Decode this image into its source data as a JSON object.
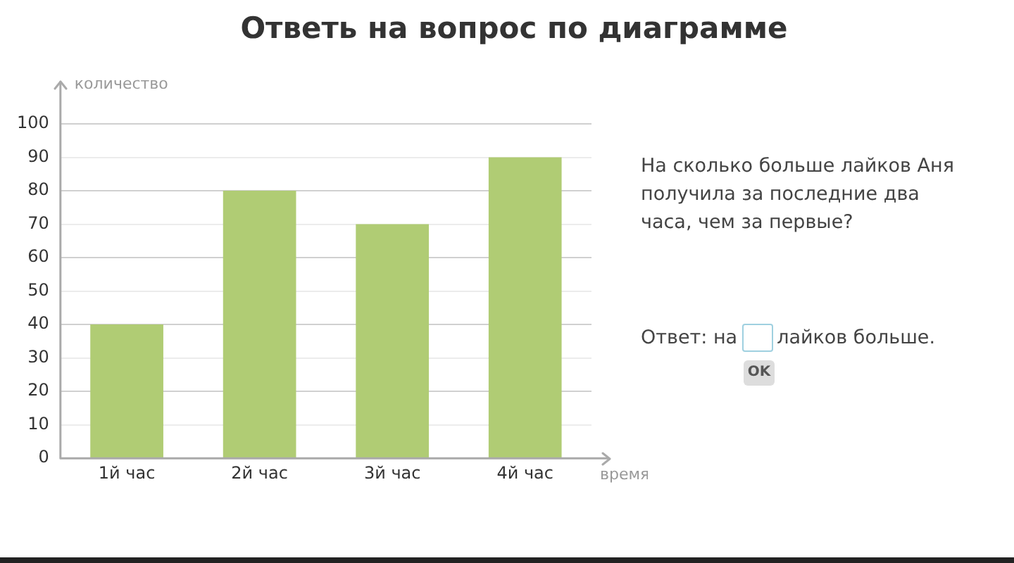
{
  "chart_data": {
    "type": "bar",
    "title": "Ответь на вопрос по диаграмме",
    "xlabel": "время",
    "ylabel": "количество",
    "categories": [
      "1й час",
      "2й час",
      "3й час",
      "4й час"
    ],
    "values": [
      40,
      80,
      70,
      90
    ],
    "color": "#b0cc74",
    "ylim": [
      0,
      100
    ],
    "yticks": [
      0,
      10,
      20,
      30,
      40,
      50,
      60,
      70,
      80,
      90,
      100
    ],
    "grid": "y",
    "annotations": [
      "На сколько больше лайков Аня получила за последние два часа, чем за первые?",
      "Ответ: на",
      "лайков больше.",
      "OK"
    ]
  }
}
